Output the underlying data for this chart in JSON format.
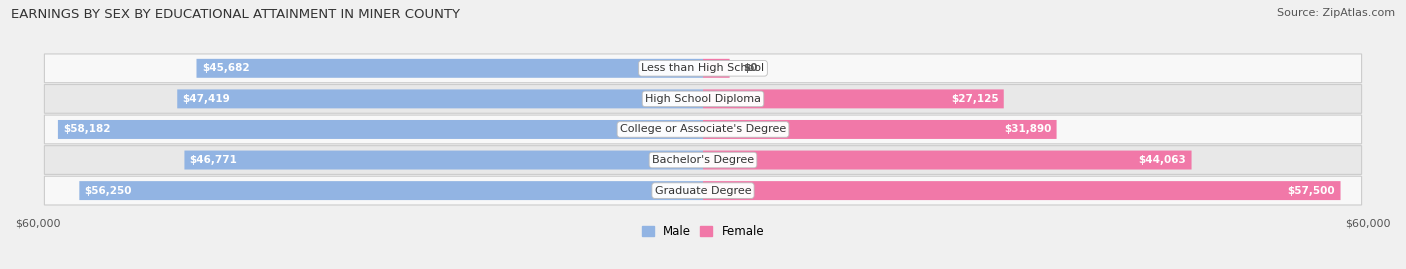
{
  "title": "EARNINGS BY SEX BY EDUCATIONAL ATTAINMENT IN MINER COUNTY",
  "source": "Source: ZipAtlas.com",
  "categories": [
    "Less than High School",
    "High School Diploma",
    "College or Associate's Degree",
    "Bachelor's Degree",
    "Graduate Degree"
  ],
  "male_values": [
    45682,
    47419,
    58182,
    46771,
    56250
  ],
  "female_values": [
    0,
    27125,
    31890,
    44063,
    57500
  ],
  "male_color": "#92b4e3",
  "female_color": "#f178a8",
  "male_label": "Male",
  "female_label": "Female",
  "xlim": 60000,
  "bar_height": 0.62,
  "background_color": "#f0f0f0",
  "row_bg_light": "#f8f8f8",
  "row_bg_dark": "#e8e8e8",
  "title_fontsize": 9.5,
  "source_fontsize": 8,
  "label_fontsize": 8.5,
  "tick_fontsize": 8,
  "value_fontsize": 7.5,
  "cat_fontsize": 8
}
